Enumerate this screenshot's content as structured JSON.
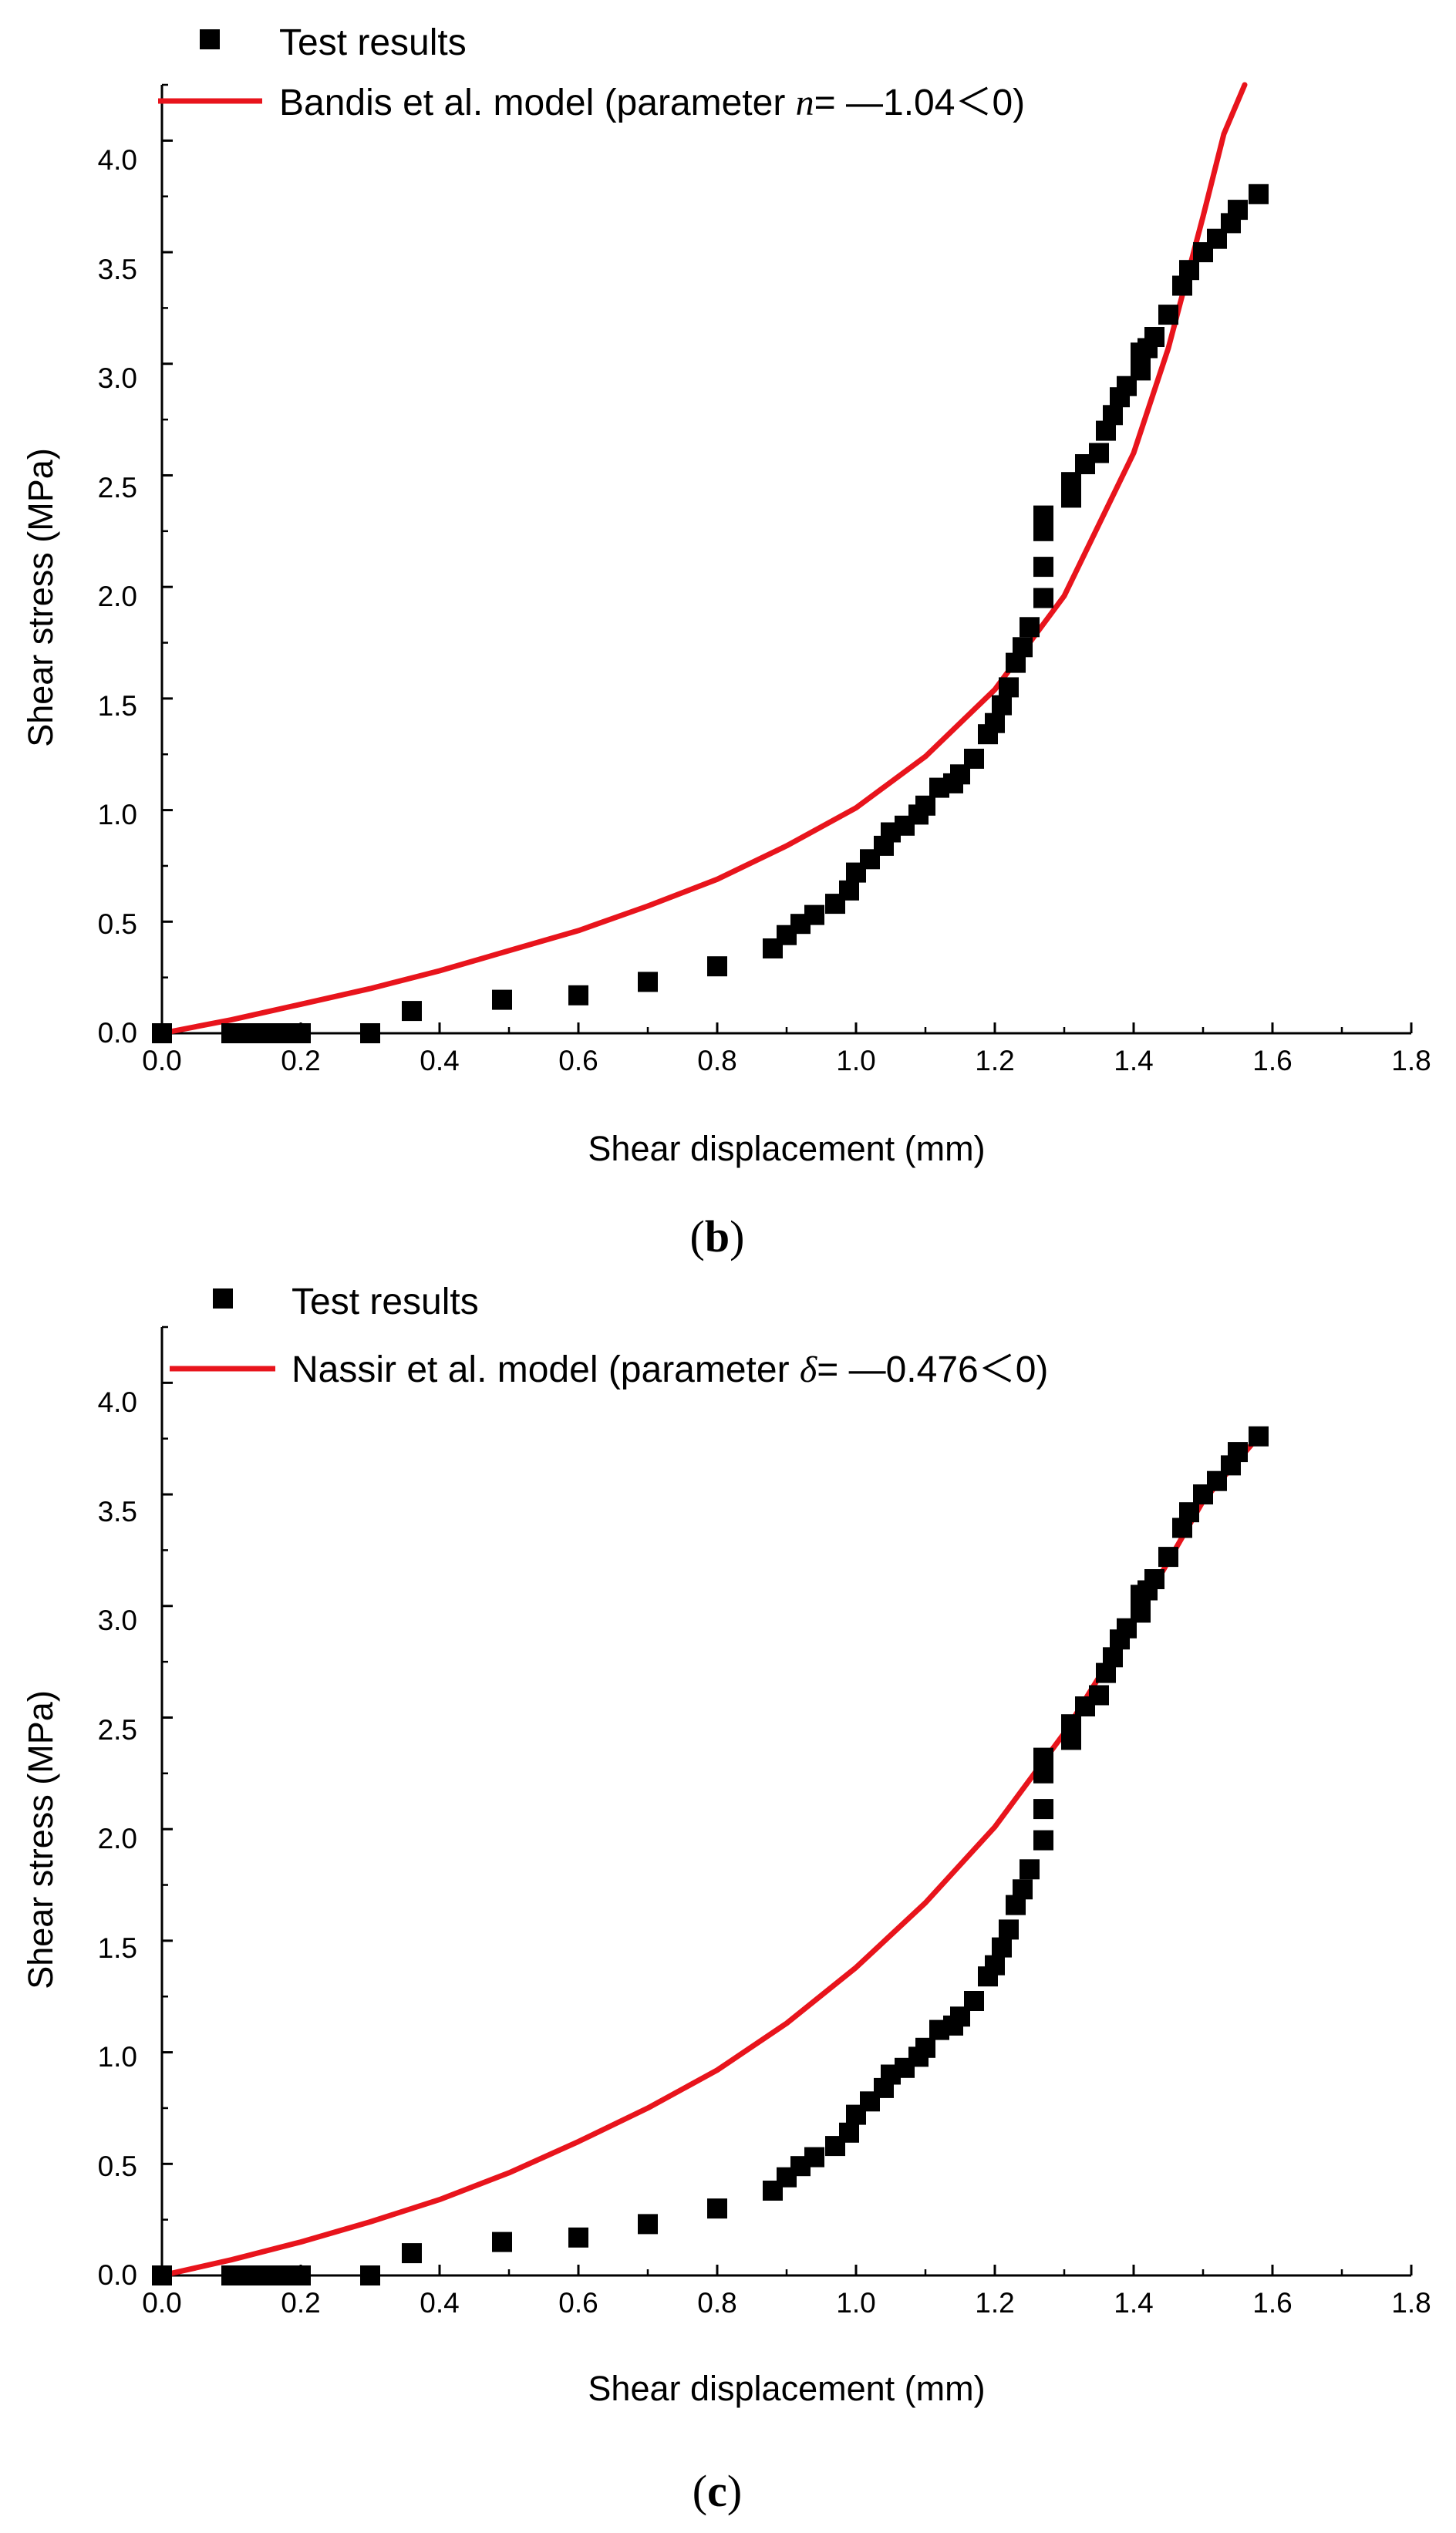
{
  "colors": {
    "marker": "#000000",
    "model_line": "#e8141c",
    "axis": "#000000"
  },
  "chart_data": [
    {
      "type": "scatter",
      "panel": "(b)",
      "panel_paren_open": "(",
      "panel_letter": "b",
      "panel_paren_close": ")",
      "xlabel": "Shear displacement (mm)",
      "ylabel": "Shear stress (MPa)",
      "xlim": [
        0,
        1.8
      ],
      "ylim": [
        0,
        4.25
      ],
      "xticks": [
        "0.0",
        "0.2",
        "0.4",
        "0.6",
        "0.8",
        "1.0",
        "1.2",
        "1.4",
        "1.6",
        "1.8"
      ],
      "yticks": [
        "0.0",
        "0.5",
        "1.0",
        "1.5",
        "2.0",
        "2.5",
        "3.0",
        "3.5",
        "4.0"
      ],
      "legend": {
        "position": "top-left",
        "scatter_label": "Test results",
        "line_label_prefix": "Bandis et al. model (parameter ",
        "line_label_symbol": "n",
        "line_label_suffix": "= —1.04＜0)"
      },
      "series": [
        {
          "name": "Test results",
          "kind": "scatter",
          "x": [
            0.0,
            0.1,
            0.12,
            0.14,
            0.16,
            0.18,
            0.2,
            0.3,
            0.36,
            0.49,
            0.6,
            0.7,
            0.8,
            0.88,
            0.9,
            0.92,
            0.94,
            0.97,
            0.99,
            1.0,
            1.02,
            1.04,
            1.05,
            1.07,
            1.09,
            1.1,
            1.12,
            1.14,
            1.15,
            1.17,
            1.19,
            1.2,
            1.21,
            1.22,
            1.23,
            1.24,
            1.25,
            1.27,
            1.27,
            1.27,
            1.27,
            1.31,
            1.31,
            1.33,
            1.35,
            1.36,
            1.37,
            1.38,
            1.39,
            1.41,
            1.41,
            1.42,
            1.43,
            1.45,
            1.47,
            1.48,
            1.5,
            1.52,
            1.54,
            1.55,
            1.58
          ],
          "y": [
            0.0,
            0.0,
            0.0,
            0.0,
            0.0,
            0.0,
            0.0,
            0.0,
            0.1,
            0.15,
            0.17,
            0.23,
            0.3,
            0.38,
            0.44,
            0.49,
            0.53,
            0.58,
            0.64,
            0.72,
            0.78,
            0.84,
            0.9,
            0.93,
            0.98,
            1.02,
            1.1,
            1.12,
            1.16,
            1.23,
            1.34,
            1.39,
            1.47,
            1.55,
            1.66,
            1.73,
            1.82,
            1.95,
            2.09,
            2.25,
            2.32,
            2.4,
            2.47,
            2.55,
            2.6,
            2.7,
            2.77,
            2.85,
            2.9,
            2.97,
            3.05,
            3.07,
            3.12,
            3.22,
            3.35,
            3.42,
            3.5,
            3.56,
            3.63,
            3.69,
            3.76
          ]
        },
        {
          "name": "Bandis et al. model",
          "kind": "line",
          "x": [
            0.0,
            0.1,
            0.2,
            0.3,
            0.4,
            0.5,
            0.6,
            0.7,
            0.8,
            0.9,
            1.0,
            1.1,
            1.2,
            1.3,
            1.4,
            1.45,
            1.5,
            1.53,
            1.56
          ],
          "y": [
            0.0,
            0.06,
            0.13,
            0.2,
            0.28,
            0.37,
            0.46,
            0.57,
            0.69,
            0.84,
            1.01,
            1.24,
            1.54,
            1.96,
            2.6,
            3.07,
            3.66,
            4.03,
            4.25
          ]
        }
      ]
    },
    {
      "type": "scatter",
      "panel": "(c)",
      "panel_paren_open": "(",
      "panel_letter": "c",
      "panel_paren_close": ")",
      "xlabel": "Shear displacement (mm)",
      "ylabel": "Shear stress (MPa)",
      "xlim": [
        0,
        1.8
      ],
      "ylim": [
        0,
        4.25
      ],
      "xticks": [
        "0.0",
        "0.2",
        "0.4",
        "0.6",
        "0.8",
        "1.0",
        "1.2",
        "1.4",
        "1.6",
        "1.8"
      ],
      "yticks": [
        "0.0",
        "0.5",
        "1.0",
        "1.5",
        "2.0",
        "2.5",
        "3.0",
        "3.5",
        "4.0"
      ],
      "legend": {
        "position": "top-left",
        "scatter_label": "Test results",
        "line_label_prefix": "Nassir et al. model (parameter ",
        "line_label_symbol": "δ",
        "line_label_suffix": "= —0.476＜0)"
      },
      "series": [
        {
          "name": "Test results",
          "kind": "scatter",
          "x": [
            0.0,
            0.1,
            0.12,
            0.14,
            0.16,
            0.18,
            0.2,
            0.3,
            0.36,
            0.49,
            0.6,
            0.7,
            0.8,
            0.88,
            0.9,
            0.92,
            0.94,
            0.97,
            0.99,
            1.0,
            1.02,
            1.04,
            1.05,
            1.07,
            1.09,
            1.1,
            1.12,
            1.14,
            1.15,
            1.17,
            1.19,
            1.2,
            1.21,
            1.22,
            1.23,
            1.24,
            1.25,
            1.27,
            1.27,
            1.27,
            1.27,
            1.31,
            1.31,
            1.33,
            1.35,
            1.36,
            1.37,
            1.38,
            1.39,
            1.41,
            1.41,
            1.42,
            1.43,
            1.45,
            1.47,
            1.48,
            1.5,
            1.52,
            1.54,
            1.55,
            1.58
          ],
          "y": [
            0.0,
            0.0,
            0.0,
            0.0,
            0.0,
            0.0,
            0.0,
            0.0,
            0.1,
            0.15,
            0.17,
            0.23,
            0.3,
            0.38,
            0.44,
            0.49,
            0.53,
            0.58,
            0.64,
            0.72,
            0.78,
            0.84,
            0.9,
            0.93,
            0.98,
            1.02,
            1.1,
            1.12,
            1.16,
            1.23,
            1.34,
            1.39,
            1.47,
            1.55,
            1.66,
            1.73,
            1.82,
            1.95,
            2.09,
            2.25,
            2.32,
            2.4,
            2.47,
            2.55,
            2.6,
            2.7,
            2.77,
            2.85,
            2.9,
            2.97,
            3.05,
            3.07,
            3.12,
            3.22,
            3.35,
            3.42,
            3.5,
            3.56,
            3.63,
            3.69,
            3.76
          ]
        },
        {
          "name": "Nassir et al. model",
          "kind": "line",
          "x": [
            0.0,
            0.1,
            0.2,
            0.3,
            0.4,
            0.5,
            0.6,
            0.7,
            0.8,
            0.9,
            1.0,
            1.1,
            1.2,
            1.3,
            1.4,
            1.5,
            1.58
          ],
          "y": [
            0.0,
            0.07,
            0.15,
            0.24,
            0.34,
            0.46,
            0.6,
            0.75,
            0.92,
            1.13,
            1.38,
            1.67,
            2.01,
            2.43,
            2.93,
            3.47,
            3.76
          ]
        }
      ]
    }
  ]
}
